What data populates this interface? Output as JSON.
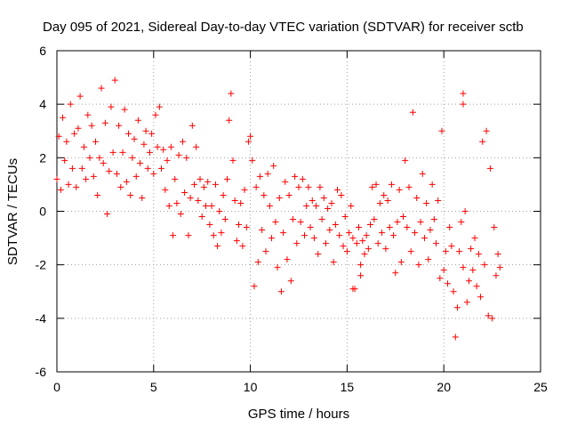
{
  "chart_data": {
    "type": "scatter",
    "title": "Day 095 of 2021, Sidereal Day-to-day VTEC variation (SDTVAR) for receiver sctb",
    "xlabel": "GPS time / hours",
    "ylabel": "SDTVAR / TECUs",
    "xlim": [
      0,
      25
    ],
    "ylim": [
      -6,
      6
    ],
    "x_ticks": [
      0,
      5,
      10,
      15,
      20,
      25
    ],
    "y_ticks": [
      -6,
      -4,
      -2,
      0,
      2,
      4,
      6
    ],
    "grid": true,
    "marker": "+",
    "color": "#ff0000",
    "series": [
      {
        "name": "SDTVAR",
        "points": [
          [
            0.0,
            1.2
          ],
          [
            0.1,
            2.8
          ],
          [
            0.2,
            0.8
          ],
          [
            0.3,
            3.5
          ],
          [
            0.4,
            1.9
          ],
          [
            0.5,
            2.6
          ],
          [
            0.6,
            1.0
          ],
          [
            0.7,
            4.0
          ],
          [
            0.8,
            1.6
          ],
          [
            0.9,
            2.9
          ],
          [
            1.0,
            0.9
          ],
          [
            1.1,
            3.1
          ],
          [
            1.2,
            4.3
          ],
          [
            1.3,
            1.6
          ],
          [
            1.4,
            2.4
          ],
          [
            1.5,
            1.2
          ],
          [
            1.6,
            3.6
          ],
          [
            1.7,
            2.0
          ],
          [
            1.8,
            3.2
          ],
          [
            1.9,
            1.3
          ],
          [
            2.0,
            2.6
          ],
          [
            2.1,
            0.6
          ],
          [
            2.2,
            2.0
          ],
          [
            2.3,
            4.6
          ],
          [
            2.4,
            1.8
          ],
          [
            2.5,
            3.3
          ],
          [
            2.6,
            -0.1
          ],
          [
            2.7,
            1.5
          ],
          [
            2.8,
            3.9
          ],
          [
            2.9,
            2.2
          ],
          [
            3.0,
            4.9
          ],
          [
            3.1,
            1.4
          ],
          [
            3.2,
            3.2
          ],
          [
            3.3,
            0.9
          ],
          [
            3.4,
            2.2
          ],
          [
            3.5,
            3.8
          ],
          [
            3.6,
            1.1
          ],
          [
            3.7,
            2.9
          ],
          [
            3.8,
            0.6
          ],
          [
            3.9,
            2.0
          ],
          [
            4.0,
            2.7
          ],
          [
            4.1,
            1.3
          ],
          [
            4.2,
            3.4
          ],
          [
            4.3,
            1.8
          ],
          [
            4.4,
            0.5
          ],
          [
            4.5,
            2.5
          ],
          [
            4.6,
            3.0
          ],
          [
            4.7,
            1.6
          ],
          [
            4.8,
            2.2
          ],
          [
            4.9,
            2.9
          ],
          [
            5.0,
            1.4
          ],
          [
            5.1,
            3.6
          ],
          [
            5.2,
            2.4
          ],
          [
            5.3,
            3.9
          ],
          [
            5.4,
            1.6
          ],
          [
            5.5,
            2.3
          ],
          [
            5.6,
            0.8
          ],
          [
            5.7,
            1.9
          ],
          [
            5.8,
            0.2
          ],
          [
            5.9,
            2.4
          ],
          [
            6.0,
            -0.9
          ],
          [
            6.1,
            1.2
          ],
          [
            6.2,
            0.3
          ],
          [
            6.3,
            2.1
          ],
          [
            6.4,
            -0.1
          ],
          [
            6.5,
            2.6
          ],
          [
            6.6,
            0.7
          ],
          [
            6.7,
            2.0
          ],
          [
            6.8,
            -0.9
          ],
          [
            6.9,
            0.5
          ],
          [
            7.0,
            3.2
          ],
          [
            7.1,
            1.0
          ],
          [
            7.2,
            2.4
          ],
          [
            7.3,
            0.4
          ],
          [
            7.4,
            1.2
          ],
          [
            7.5,
            -0.2
          ],
          [
            7.6,
            0.9
          ],
          [
            7.7,
            0.2
          ],
          [
            7.8,
            1.1
          ],
          [
            7.9,
            -0.5
          ],
          [
            8.0,
            0.2
          ],
          [
            8.1,
            -0.9
          ],
          [
            8.2,
            1.0
          ],
          [
            8.3,
            -1.3
          ],
          [
            8.4,
            0.0
          ],
          [
            8.5,
            -0.8
          ],
          [
            8.6,
            0.6
          ],
          [
            8.7,
            -0.3
          ],
          [
            8.8,
            1.2
          ],
          [
            8.9,
            3.4
          ],
          [
            9.0,
            4.4
          ],
          [
            9.1,
            1.9
          ],
          [
            9.2,
            0.4
          ],
          [
            9.3,
            -1.1
          ],
          [
            9.4,
            -0.5
          ],
          [
            9.5,
            0.3
          ],
          [
            9.6,
            -1.3
          ],
          [
            9.7,
            0.8
          ],
          [
            9.8,
            -0.6
          ],
          [
            9.9,
            2.6
          ],
          [
            10.0,
            2.8
          ],
          [
            10.1,
            1.9
          ],
          [
            10.2,
            -2.8
          ],
          [
            10.3,
            0.9
          ],
          [
            10.4,
            -1.9
          ],
          [
            10.5,
            1.3
          ],
          [
            10.6,
            -0.7
          ],
          [
            10.7,
            0.6
          ],
          [
            10.8,
            -1.5
          ],
          [
            10.9,
            1.4
          ],
          [
            11.0,
            0.2
          ],
          [
            11.1,
            -1.0
          ],
          [
            11.2,
            1.7
          ],
          [
            11.3,
            -0.4
          ],
          [
            11.4,
            -2.1
          ],
          [
            11.5,
            0.5
          ],
          [
            11.6,
            -3.0
          ],
          [
            11.7,
            -0.8
          ],
          [
            11.8,
            1.1
          ],
          [
            11.9,
            -1.8
          ],
          [
            12.0,
            0.6
          ],
          [
            12.1,
            -2.6
          ],
          [
            12.2,
            -0.3
          ],
          [
            12.3,
            1.3
          ],
          [
            12.4,
            -1.2
          ],
          [
            12.5,
            0.9
          ],
          [
            12.6,
            -0.4
          ],
          [
            12.7,
            1.2
          ],
          [
            12.8,
            -0.9
          ],
          [
            12.9,
            0.2
          ],
          [
            13.0,
            0.9
          ],
          [
            13.1,
            -0.6
          ],
          [
            13.2,
            0.4
          ],
          [
            13.3,
            -1.0
          ],
          [
            13.4,
            0.2
          ],
          [
            13.5,
            -1.6
          ],
          [
            13.6,
            0.9
          ],
          [
            13.7,
            -0.3
          ],
          [
            13.8,
            0.5
          ],
          [
            13.9,
            -1.2
          ],
          [
            14.0,
            0.1
          ],
          [
            14.1,
            -0.7
          ],
          [
            14.2,
            0.3
          ],
          [
            14.3,
            -1.9
          ],
          [
            14.4,
            -0.5
          ],
          [
            14.5,
            0.8
          ],
          [
            14.6,
            -0.9
          ],
          [
            14.7,
            0.6
          ],
          [
            14.8,
            -1.3
          ],
          [
            14.9,
            -0.2
          ],
          [
            15.0,
            -1.5
          ],
          [
            15.1,
            -0.8
          ],
          [
            15.2,
            0.2
          ],
          [
            15.3,
            -1.0
          ],
          [
            15.4,
            -2.9
          ],
          [
            15.5,
            -1.2
          ],
          [
            15.6,
            -0.6
          ],
          [
            15.7,
            -2.0
          ],
          [
            15.8,
            -1.1
          ],
          [
            15.9,
            -1.6
          ],
          [
            16.0,
            -0.9
          ],
          [
            16.1,
            -1.4
          ],
          [
            16.2,
            -0.5
          ],
          [
            16.3,
            0.9
          ],
          [
            16.4,
            -0.3
          ],
          [
            16.5,
            1.0
          ],
          [
            16.6,
            -1.2
          ],
          [
            16.7,
            0.3
          ],
          [
            16.8,
            -0.8
          ],
          [
            16.9,
            0.6
          ],
          [
            17.0,
            -1.4
          ],
          [
            17.1,
            0.4
          ],
          [
            17.2,
            -0.6
          ],
          [
            17.3,
            1.0
          ],
          [
            17.4,
            -0.9
          ],
          [
            17.5,
            -2.3
          ],
          [
            17.6,
            -0.4
          ],
          [
            17.7,
            0.8
          ],
          [
            17.8,
            -1.9
          ],
          [
            17.9,
            -0.2
          ],
          [
            18.0,
            1.9
          ],
          [
            18.1,
            -0.6
          ],
          [
            18.2,
            0.9
          ],
          [
            18.3,
            -1.5
          ],
          [
            18.4,
            3.7
          ],
          [
            18.5,
            -0.8
          ],
          [
            18.6,
            0.5
          ],
          [
            18.7,
            -2.0
          ],
          [
            18.8,
            -0.4
          ],
          [
            18.9,
            1.4
          ],
          [
            19.0,
            -1.0
          ],
          [
            19.1,
            0.3
          ],
          [
            19.2,
            -1.8
          ],
          [
            19.3,
            -0.7
          ],
          [
            19.4,
            1.0
          ],
          [
            19.5,
            -0.3
          ],
          [
            19.6,
            -1.2
          ],
          [
            19.7,
            0.4
          ],
          [
            19.8,
            -2.5
          ],
          [
            19.9,
            3.0
          ],
          [
            20.0,
            -2.2
          ],
          [
            20.1,
            -1.5
          ],
          [
            20.2,
            -2.7
          ],
          [
            20.3,
            -0.6
          ],
          [
            20.4,
            -1.3
          ],
          [
            20.5,
            -3.0
          ],
          [
            20.6,
            -4.7
          ],
          [
            20.7,
            -3.6
          ],
          [
            20.8,
            -1.5
          ],
          [
            20.9,
            -0.4
          ],
          [
            21.0,
            -2.1
          ],
          [
            21.1,
            0.0
          ],
          [
            21.2,
            -3.4
          ],
          [
            21.3,
            -2.6
          ],
          [
            21.4,
            -1.4
          ],
          [
            21.5,
            -2.2
          ],
          [
            21.6,
            -1.0
          ],
          [
            21.7,
            -2.8
          ],
          [
            21.8,
            -1.6
          ],
          [
            21.9,
            -3.2
          ],
          [
            22.0,
            2.6
          ],
          [
            22.1,
            -2.0
          ],
          [
            22.2,
            3.0
          ],
          [
            22.3,
            -3.9
          ],
          [
            22.4,
            1.6
          ],
          [
            22.5,
            -4.0
          ],
          [
            22.6,
            -0.6
          ],
          [
            22.7,
            -2.4
          ],
          [
            22.8,
            -1.6
          ],
          [
            22.9,
            -2.1
          ],
          [
            21.0,
            4.4
          ],
          [
            21.0,
            4.0
          ],
          [
            15.3,
            -2.9
          ],
          [
            15.7,
            -2.4
          ]
        ]
      }
    ]
  }
}
